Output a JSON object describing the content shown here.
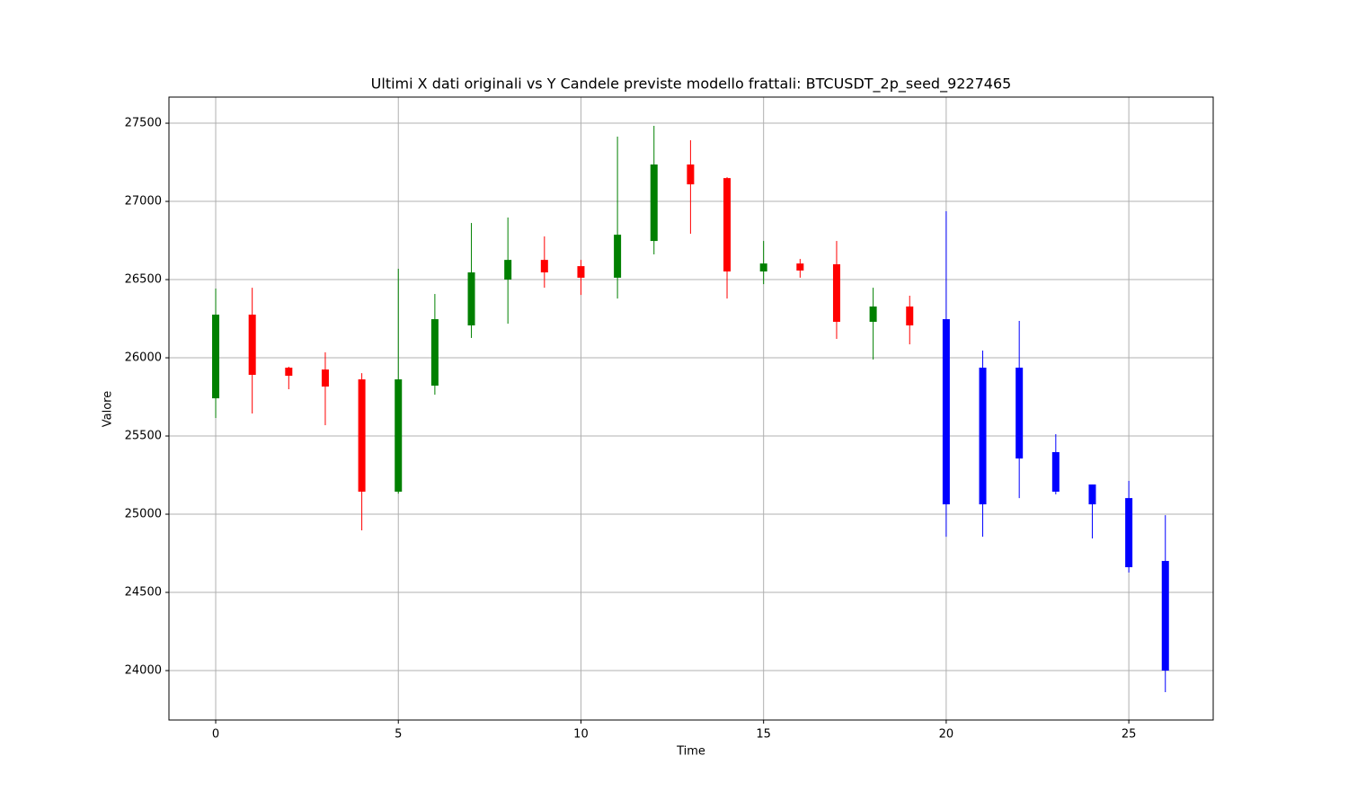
{
  "chart_data": {
    "type": "candlestick",
    "title": "Ultimi X dati originali vs Y Candele previste modello frattali: BTCUSDT_2p_seed_9227465",
    "x_label": "Time",
    "y_label": "Valore",
    "x": [
      0,
      1,
      2,
      3,
      4,
      5,
      6,
      7,
      8,
      9,
      10,
      11,
      12,
      13,
      14,
      15,
      16,
      17,
      18,
      19,
      20,
      21,
      22,
      23,
      24,
      25,
      26
    ],
    "open": [
      25741,
      26276,
      25937,
      25925,
      25862,
      25144,
      25822,
      26207,
      26500,
      26626,
      26586,
      26512,
      26747,
      27236,
      27149,
      26552,
      26603,
      26598,
      26230,
      26328,
      26247,
      25937,
      25937,
      25397,
      25190,
      25103,
      24701
    ],
    "high": [
      26443,
      26448,
      25943,
      26035,
      25902,
      26569,
      26408,
      26862,
      26897,
      26776,
      26626,
      27414,
      27483,
      27391,
      27155,
      26747,
      26632,
      26747,
      26448,
      26397,
      26937,
      26046,
      26236,
      25512,
      25190,
      25213,
      24994
    ],
    "low": [
      25615,
      25644,
      25799,
      25569,
      24897,
      25132,
      25764,
      26127,
      26218,
      26448,
      26402,
      26379,
      26661,
      26793,
      26379,
      26471,
      26512,
      26121,
      25989,
      26086,
      24856,
      24856,
      25103,
      25127,
      24845,
      24627,
      23862
    ],
    "close": [
      26276,
      25891,
      25885,
      25816,
      25144,
      25862,
      26247,
      26546,
      26626,
      26546,
      26512,
      26787,
      27236,
      27109,
      26552,
      26603,
      26558,
      26230,
      26328,
      26207,
      25063,
      25063,
      25356,
      25144,
      25063,
      24661,
      24000
    ],
    "colors": [
      "green",
      "red",
      "red",
      "red",
      "red",
      "green",
      "green",
      "green",
      "green",
      "red",
      "red",
      "green",
      "green",
      "red",
      "red",
      "green",
      "red",
      "red",
      "green",
      "red",
      "blue",
      "blue",
      "blue",
      "blue",
      "blue",
      "blue",
      "blue"
    ],
    "xlim": [
      -1.28,
      27.31
    ],
    "ylim": [
      23684,
      27667
    ],
    "xticks": [
      0,
      5,
      10,
      15,
      20,
      25
    ],
    "yticks": [
      24000,
      24500,
      25000,
      25500,
      26000,
      26500,
      27000,
      27500
    ],
    "grid": true
  }
}
